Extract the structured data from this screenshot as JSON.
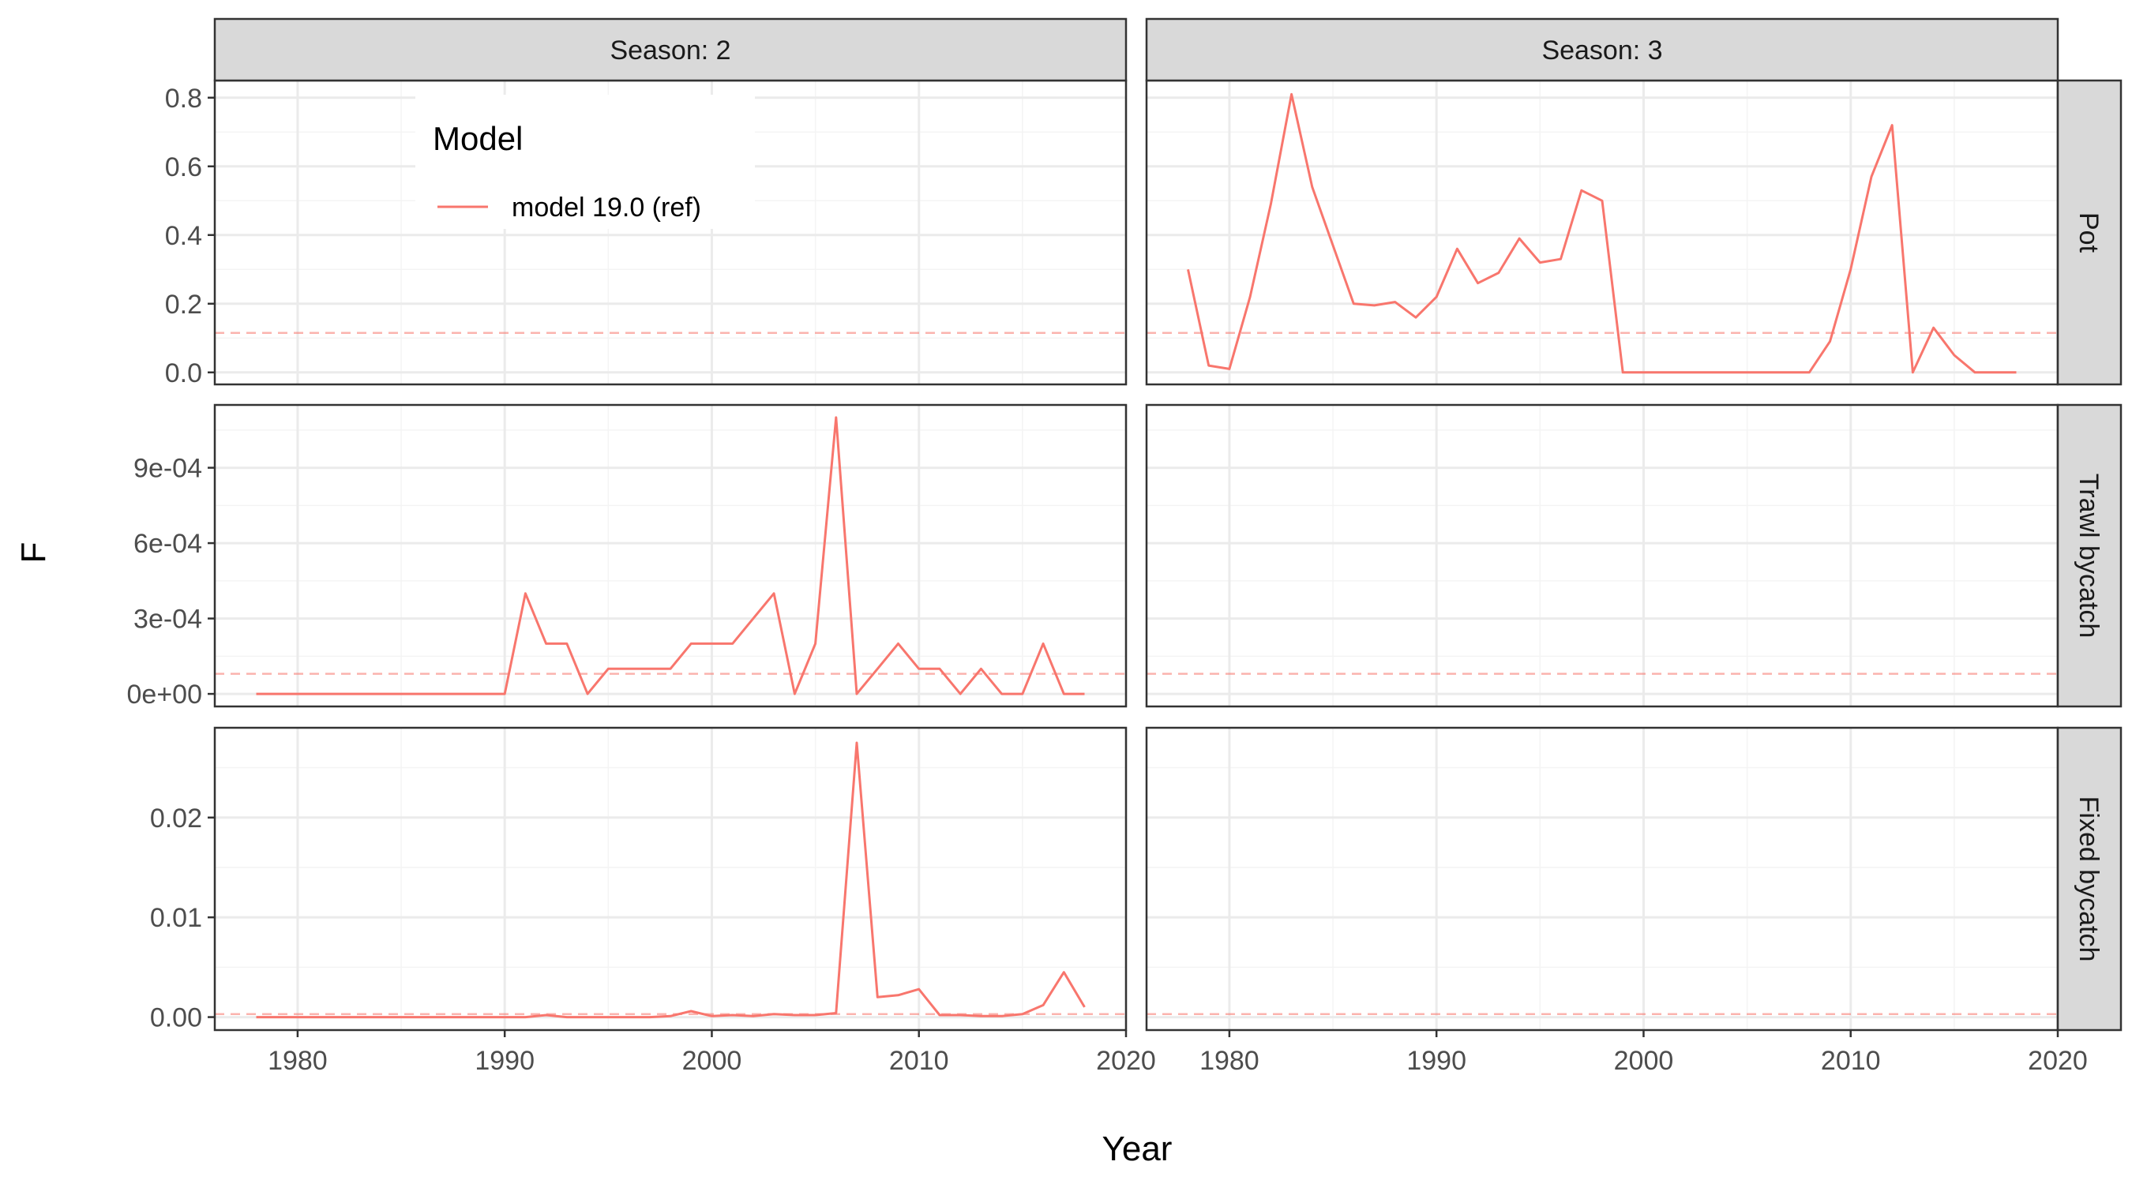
{
  "chart_data": {
    "type": "line",
    "xlabel": "Year",
    "ylabel": "F",
    "xlim": [
      1976,
      2020
    ],
    "x_ticks": [
      1980,
      1990,
      2000,
      2010,
      2020
    ],
    "x_tick_labels": [
      "1980",
      "1990",
      "2000",
      "2010",
      "2020"
    ],
    "colors": {
      "series": "#f8766d",
      "reference": "#f8766d",
      "strip_bg": "#d9d9d9",
      "grid_major": "#ebebeb",
      "grid_minor": "#f4f4f4"
    },
    "legend": {
      "title": "Model",
      "entries": [
        "model 19.0 (ref)"
      ],
      "position": "inside-top-left"
    },
    "columns": [
      {
        "label": "Season: 2"
      },
      {
        "label": "Season: 3"
      }
    ],
    "rows": [
      {
        "label": "Pot",
        "ylim": [
          -0.035,
          0.85
        ],
        "y_ticks": [
          0.0,
          0.2,
          0.4,
          0.6,
          0.8
        ],
        "y_tick_labels": [
          "0.0",
          "0.2",
          "0.4",
          "0.6",
          "0.8"
        ],
        "reference_line": 0.115
      },
      {
        "label": "Trawl bycatch",
        "ylim": [
          -5e-05,
          0.00115
        ],
        "y_ticks": [
          0,
          0.0003,
          0.0006,
          0.0009
        ],
        "y_tick_labels": [
          "0e+00",
          "3e-04",
          "6e-04",
          "9e-04"
        ],
        "reference_line": 8e-05
      },
      {
        "label": "Fixed bycatch",
        "ylim": [
          -0.0013,
          0.029
        ],
        "y_ticks": [
          0,
          0.01,
          0.02
        ],
        "y_tick_labels": [
          "0.00",
          "0.01",
          "0.02"
        ],
        "reference_line": 0.0003
      }
    ],
    "panels": [
      {
        "row": 0,
        "col": 1,
        "series": [
          {
            "name": "model 19.0 (ref)",
            "x": [
              1978,
              1979,
              1980,
              1981,
              1982,
              1983,
              1984,
              1985,
              1986,
              1987,
              1988,
              1989,
              1990,
              1991,
              1992,
              1993,
              1994,
              1995,
              1996,
              1997,
              1998,
              1999,
              2000,
              2001,
              2002,
              2003,
              2004,
              2005,
              2006,
              2007,
              2008,
              2009,
              2010,
              2011,
              2012,
              2013,
              2014,
              2015,
              2016,
              2017,
              2018
            ],
            "y": [
              0.3,
              0.02,
              0.01,
              0.22,
              0.49,
              0.81,
              0.54,
              0.37,
              0.2,
              0.195,
              0.205,
              0.16,
              0.22,
              0.36,
              0.26,
              0.29,
              0.39,
              0.32,
              0.33,
              0.53,
              0.5,
              0.0,
              0.0,
              0.0,
              0.0,
              0.0,
              0.0,
              0.0,
              0.0,
              0.0,
              0.0,
              0.09,
              0.3,
              0.57,
              0.72,
              0.0,
              0.13,
              0.05,
              0.0,
              0.0,
              0.0
            ]
          }
        ]
      },
      {
        "row": 1,
        "col": 0,
        "series": [
          {
            "name": "model 19.0 (ref)",
            "x": [
              1978,
              1979,
              1980,
              1981,
              1982,
              1983,
              1984,
              1985,
              1986,
              1987,
              1988,
              1989,
              1990,
              1991,
              1992,
              1993,
              1994,
              1995,
              1996,
              1997,
              1998,
              1999,
              2000,
              2001,
              2002,
              2003,
              2004,
              2005,
              2006,
              2007,
              2008,
              2009,
              2010,
              2011,
              2012,
              2013,
              2014,
              2015,
              2016,
              2017,
              2018
            ],
            "y": [
              0,
              0,
              0,
              0,
              0,
              0,
              0,
              0,
              0,
              0,
              0,
              0,
              0,
              0.0004,
              0.0002,
              0.0002,
              0,
              0.0001,
              0.0001,
              0.0001,
              0.0001,
              0.0002,
              0.0002,
              0.0002,
              0.0003,
              0.0004,
              0,
              0.0002,
              0.0011,
              0,
              0.0001,
              0.0002,
              0.0001,
              0.0001,
              0,
              0.0001,
              0,
              0,
              0.0002,
              0,
              0
            ]
          }
        ]
      },
      {
        "row": 2,
        "col": 0,
        "series": [
          {
            "name": "model 19.0 (ref)",
            "x": [
              1978,
              1979,
              1980,
              1981,
              1982,
              1983,
              1984,
              1985,
              1986,
              1987,
              1988,
              1989,
              1990,
              1991,
              1992,
              1993,
              1994,
              1995,
              1996,
              1997,
              1998,
              1999,
              2000,
              2001,
              2002,
              2003,
              2004,
              2005,
              2006,
              2007,
              2008,
              2009,
              2010,
              2011,
              2012,
              2013,
              2014,
              2015,
              2016,
              2017,
              2018
            ],
            "y": [
              0,
              0,
              0,
              0,
              0,
              0,
              0,
              0,
              0,
              0,
              0,
              0,
              0,
              0,
              0.0002,
              0,
              0,
              0,
              0,
              0,
              0.0001,
              0.0006,
              0.0001,
              0.0002,
              0.0001,
              0.0003,
              0.0002,
              0.0002,
              0.0004,
              0.0275,
              0.002,
              0.0022,
              0.0028,
              0.0002,
              0.0002,
              0.0001,
              0.0001,
              0.0003,
              0.0012,
              0.0045,
              0.001
            ]
          }
        ]
      }
    ]
  }
}
